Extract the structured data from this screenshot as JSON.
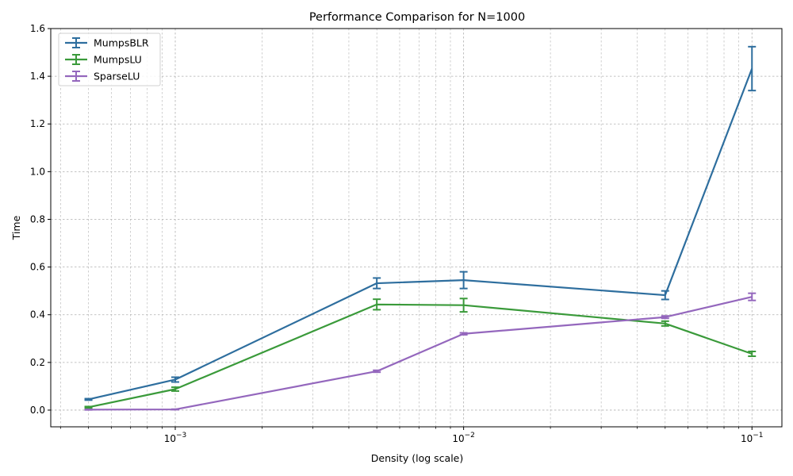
{
  "chart_data": {
    "type": "line",
    "title": "Performance Comparison for N=1000",
    "xlabel": "Density (log scale)",
    "ylabel": "Time",
    "xscale": "log",
    "xlim": [
      0.00037,
      0.127
    ],
    "ylim": [
      -0.07,
      1.6
    ],
    "x": [
      0.0005,
      0.001,
      0.005,
      0.01,
      0.05,
      0.1
    ],
    "x_ticks": [
      {
        "value": 0.001,
        "base": "10",
        "exp": "−3"
      },
      {
        "value": 0.01,
        "base": "10",
        "exp": "−2"
      },
      {
        "value": 0.1,
        "base": "10",
        "exp": "−1"
      }
    ],
    "y_ticks": [
      {
        "value": 0.0,
        "label": "0.0"
      },
      {
        "value": 0.2,
        "label": "0.2"
      },
      {
        "value": 0.4,
        "label": "0.4"
      },
      {
        "value": 0.6,
        "label": "0.6"
      },
      {
        "value": 0.8,
        "label": "0.8"
      },
      {
        "value": 1.0,
        "label": "1.0"
      },
      {
        "value": 1.2,
        "label": "1.2"
      },
      {
        "value": 1.4,
        "label": "1.4"
      },
      {
        "value": 1.6,
        "label": "1.6"
      }
    ],
    "grid": true,
    "legend_position": "top-left",
    "series": [
      {
        "name": "MumpsBLR",
        "color": "#2e6e9e",
        "values": [
          0.045,
          0.128,
          0.532,
          0.545,
          0.482,
          1.432
        ],
        "errors": [
          0.003,
          0.01,
          0.022,
          0.035,
          0.018,
          0.092
        ]
      },
      {
        "name": "MumpsLU",
        "color": "#3a9a3a",
        "values": [
          0.012,
          0.088,
          0.443,
          0.44,
          0.363,
          0.236
        ],
        "errors": [
          0.003,
          0.008,
          0.022,
          0.028,
          0.01,
          0.01
        ]
      },
      {
        "name": "SparseLU",
        "color": "#9467bd",
        "values": [
          0.002,
          0.003,
          0.163,
          0.32,
          0.39,
          0.475
        ],
        "errors": [
          0.001,
          0.001,
          0.004,
          0.004,
          0.005,
          0.015
        ]
      }
    ]
  }
}
